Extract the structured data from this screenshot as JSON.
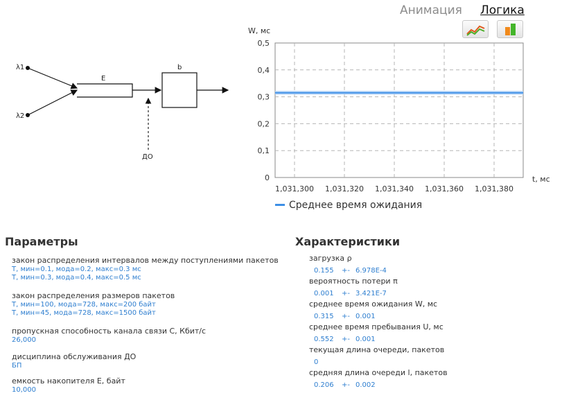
{
  "tabs": {
    "animation": "Анимация",
    "logic": "Логика"
  },
  "toolbar": {
    "chart_icon": "line-chart-icon",
    "bar_icon": "bar-chart-icon"
  },
  "diagram": {
    "lambda1": "λ1",
    "lambda2": "λ2",
    "buffer": "E",
    "server": "b",
    "discipline": "ДО"
  },
  "chart_data": {
    "type": "line",
    "ylabel": "W, мс",
    "xlabel": "t, мс",
    "yticks": [
      "0",
      "0,1",
      "0,2",
      "0,3",
      "0,4",
      "0,5"
    ],
    "xticks": [
      "1,031,300",
      "1,031,320",
      "1,031,340",
      "1,031,360",
      "1,031,380"
    ],
    "ylim": [
      0,
      0.5
    ],
    "grid": true,
    "legend_position": "bottom",
    "series": [
      {
        "name": "Среднее время ожидания",
        "color": "#3d8fe6",
        "values": [
          0.315,
          0.315,
          0.315,
          0.315,
          0.315,
          0.315,
          0.315
        ]
      }
    ]
  },
  "parameters": {
    "title": "Параметры",
    "items": [
      {
        "label": "закон распределения интервалов между поступлениями пакетов",
        "values": [
          "T, мин=0.1, мода=0.2, макс=0.3 мс",
          "T, мин=0.3, мода=0.4, макс=0.5 мс"
        ]
      },
      {
        "label": "закон распределения размеров пакетов",
        "values": [
          "T, мин=100, мода=728, макс=200 байт",
          "T, мин=45, мода=728, макс=1500 байт"
        ]
      },
      {
        "label": "пропускная способность канала связи С, Кбит/с",
        "values": [
          "26,000"
        ]
      },
      {
        "label": "дисциплина обслуживания ДО",
        "values": [
          "БП"
        ]
      },
      {
        "label": "емкость накопителя Е, байт",
        "values": [
          "10,000"
        ]
      }
    ]
  },
  "characteristics": {
    "title": "Характеристики",
    "items": [
      {
        "label": "загрузка ρ",
        "value": "0.155",
        "pm": "+-",
        "err": "6.978E-4"
      },
      {
        "label": "вероятность потери π",
        "value": "0.001",
        "pm": "+-",
        "err": "3.421E-7"
      },
      {
        "label": "среднее время ожидания W, мс",
        "value": "0.315",
        "pm": "+-",
        "err": "0.001"
      },
      {
        "label": "среднее время пребывания U, мс",
        "value": "0.552",
        "pm": "+-",
        "err": "0.001"
      },
      {
        "label": "текущая длина очереди, пакетов",
        "value": "0",
        "pm": "",
        "err": ""
      },
      {
        "label": "средняя длина очереди l, пакетов",
        "value": "0.206",
        "pm": "+-",
        "err": "0.002"
      }
    ]
  }
}
